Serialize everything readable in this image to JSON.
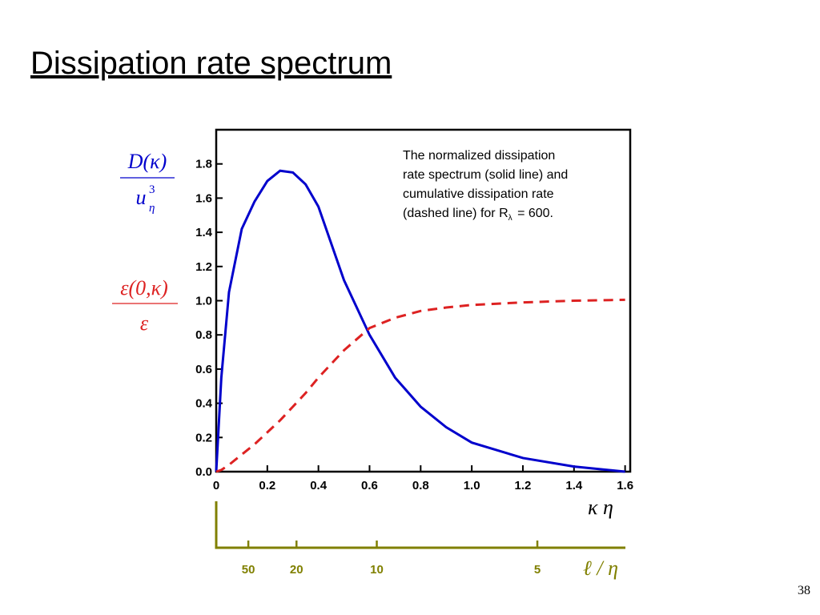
{
  "slide": {
    "title": "Dissipation rate spectrum",
    "page_number": "38"
  },
  "chart_data": {
    "type": "line",
    "x": [
      0,
      0.02,
      0.05,
      0.1,
      0.15,
      0.2,
      0.25,
      0.3,
      0.35,
      0.4,
      0.5,
      0.6,
      0.7,
      0.8,
      0.9,
      1.0,
      1.2,
      1.4,
      1.6
    ],
    "series": [
      {
        "color": "#0000cc",
        "dash": "solid",
        "values": [
          0,
          0.55,
          1.05,
          1.42,
          1.58,
          1.7,
          1.76,
          1.75,
          1.68,
          1.55,
          1.12,
          0.8,
          0.55,
          0.38,
          0.26,
          0.17,
          0.08,
          0.03,
          0.0
        ]
      },
      {
        "color": "#dd2222",
        "dash": "dashed",
        "values": [
          0,
          0.01,
          0.04,
          0.1,
          0.16,
          0.23,
          0.3,
          0.38,
          0.46,
          0.55,
          0.71,
          0.84,
          0.9,
          0.94,
          0.96,
          0.975,
          0.99,
          1.0,
          1.005
        ]
      }
    ],
    "xlim": [
      0,
      1.62
    ],
    "ylim": [
      0,
      2.0
    ],
    "xticks": [
      0,
      0.2,
      0.4,
      0.6,
      0.8,
      {
        "value": 1.0,
        "label": "1.0"
      },
      1.2,
      1.4,
      1.6
    ],
    "yticks": [
      {
        "value": 0,
        "label": "0.0"
      },
      0.2,
      0.4,
      0.6,
      0.8,
      {
        "value": 1.0,
        "label": "1.0"
      },
      1.2,
      1.4,
      1.6,
      1.8
    ],
    "xlabel": "κ η",
    "ylabel_spectrum": {
      "numerator": "D(κ)",
      "denominator": "u",
      "sup": "3",
      "sub": "η"
    },
    "ylabel_cumulative": {
      "numerator": "ε(0,κ)",
      "denominator": "ε"
    },
    "annotation": {
      "lines": [
        "The normalized dissipation",
        "rate spectrum (solid line) and",
        "cumulative dissipation rate",
        "(dashed line) for R"
      ],
      "sub": "λ",
      "end": " = 600."
    },
    "x2": {
      "label": "ℓ / η",
      "color": "#808000",
      "transform": "2pi/x",
      "ticks": [
        50,
        20,
        10,
        5
      ]
    }
  }
}
